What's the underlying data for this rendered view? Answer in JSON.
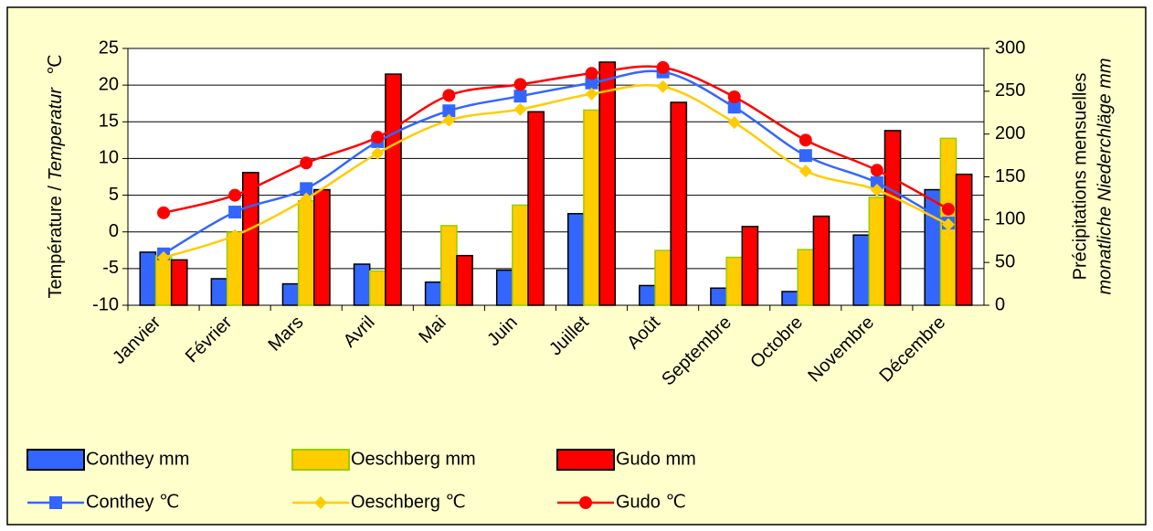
{
  "chart_data": {
    "type": "bar-line",
    "ylabel": [
      "Température / ",
      "Temperatur",
      "℃"
    ],
    "y2label": [
      "Précipitations mensuelles",
      "monatliche Niederchläge mm"
    ],
    "categories": [
      "Janvier",
      "Février",
      "Mars",
      "Avril",
      "Mai",
      "Juin",
      "Juillet",
      "Août",
      "Septembre",
      "Octobre",
      "Novembre",
      "Décembre"
    ],
    "ylim": [
      -10,
      25
    ],
    "yticks": [
      -10,
      -5,
      0,
      5,
      10,
      15,
      20,
      25
    ],
    "y2lim": [
      0,
      300
    ],
    "y2ticks": [
      0,
      50,
      100,
      150,
      200,
      250,
      300
    ],
    "grid": true,
    "series": [
      {
        "name": "Conthey mm",
        "kind": "bar",
        "axis": "y2",
        "color": "#3366ff",
        "values": [
          62,
          31,
          25,
          48,
          27,
          41,
          107,
          23,
          20,
          16,
          82,
          135
        ]
      },
      {
        "name": "Oeschberg mm",
        "kind": "bar",
        "axis": "y2",
        "color": "#ffcc00",
        "edge": "#99cc00",
        "values": [
          58,
          85,
          122,
          40,
          93,
          117,
          228,
          64,
          56,
          65,
          126,
          195
        ]
      },
      {
        "name": "Gudo mm",
        "kind": "bar",
        "axis": "y2",
        "color": "#ff0000",
        "values": [
          53,
          155,
          135,
          270,
          58,
          226,
          284,
          237,
          92,
          104,
          204,
          153
        ]
      },
      {
        "name": "Conthey ℃",
        "kind": "line",
        "marker": "square",
        "color": "#3366ff",
        "values": [
          -3.0,
          2.7,
          5.9,
          12.3,
          16.5,
          18.5,
          20.3,
          21.8,
          17.0,
          10.4,
          6.7,
          1.2
        ]
      },
      {
        "name": "Oeschberg  ℃",
        "kind": "line",
        "marker": "diamond",
        "color": "#ffcc00",
        "values": [
          -3.5,
          -0.5,
          4.5,
          10.7,
          15.2,
          16.7,
          18.8,
          19.8,
          14.9,
          8.3,
          5.7,
          1.0
        ]
      },
      {
        "name": "Gudo  ℃",
        "kind": "line",
        "marker": "circle",
        "color": "#ff0000",
        "values": [
          2.6,
          5.0,
          9.4,
          12.9,
          18.6,
          20.1,
          21.6,
          22.4,
          18.4,
          12.5,
          8.4,
          3.1
        ]
      }
    ]
  }
}
